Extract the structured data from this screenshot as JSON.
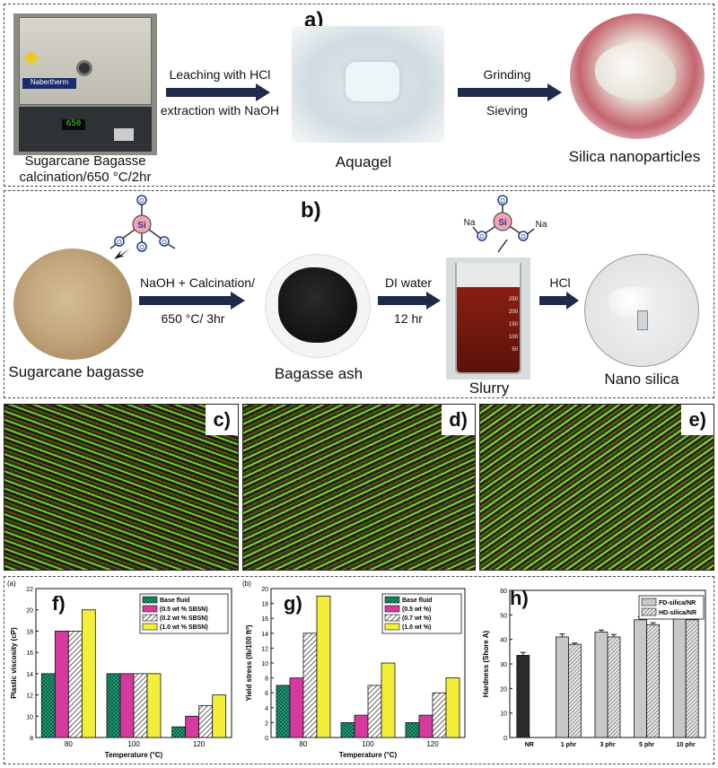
{
  "panel_a": {
    "label": "a)",
    "furnace_brand": "Nabertherm",
    "furnace_display": "650",
    "step1_line1": "Leaching with HCl",
    "step1_line2": "extraction with NaOH",
    "step2_line1": "Grinding",
    "step2_line2": "Sieving",
    "caption_start_line1": "Sugarcane Bagasse",
    "caption_start_line2": "calcination/650 °C/2hr",
    "caption_mid": "Aquagel",
    "caption_end": "Silica nanoparticles"
  },
  "panel_b": {
    "label": "b)",
    "step1_line1": "NaOH + Calcination/",
    "step1_line2": "650 °C/ 3hr",
    "step2_line1": "DI water",
    "step2_line2": "12 hr",
    "step3": "HCl",
    "caption_1": "Sugarcane bagasse",
    "caption_2": "Bagasse ash",
    "caption_3": "Slurry",
    "caption_4": "Nano silica",
    "si_label": "Si",
    "o_label": "O",
    "na_label": "Na",
    "beaker_marks": [
      "250",
      "200",
      "150",
      "100",
      "50"
    ]
  },
  "panel_cde": {
    "labels": [
      "c)",
      "d)",
      "e)"
    ]
  },
  "chart_f": {
    "label": "f)",
    "tag": "(a)",
    "chart_data": {
      "type": "bar",
      "categories": [
        "80",
        "100",
        "120"
      ],
      "series": [
        {
          "name": "Base fluid",
          "values": [
            14,
            14,
            9
          ]
        },
        {
          "name": "(0.5 wt % SBSN)",
          "values": [
            18,
            14,
            10
          ]
        },
        {
          "name": "(0.2 wt % SBSN)",
          "values": [
            18,
            14,
            11
          ]
        },
        {
          "name": "(1.0 wt % SBSN)",
          "values": [
            20,
            14,
            12
          ]
        }
      ],
      "xlabel": "Temperature (°C)",
      "ylabel": "Plastic viscosity (cP)",
      "ylim": [
        8,
        22
      ],
      "yticks": [
        "8",
        "10",
        "12",
        "14",
        "16",
        "18",
        "20",
        "22"
      ],
      "legend_position": "top-right"
    }
  },
  "chart_g": {
    "label": "g)",
    "tag": "(b)",
    "chart_data": {
      "type": "bar",
      "categories": [
        "80",
        "100",
        "120"
      ],
      "series": [
        {
          "name": "Base fluid",
          "values": [
            7,
            2,
            2
          ]
        },
        {
          "name": "(0.5 wt %)",
          "values": [
            8,
            3,
            3
          ]
        },
        {
          "name": "(0.7 wt %)",
          "values": [
            14,
            7,
            6
          ]
        },
        {
          "name": "(1.0 wt %)",
          "values": [
            19,
            10,
            8
          ]
        }
      ],
      "xlabel": "Temperature (°C)",
      "ylabel": "Yield stress (lb/100 ft²)",
      "ylim": [
        0,
        20
      ],
      "yticks": [
        "0",
        "2",
        "4",
        "6",
        "8",
        "10",
        "12",
        "14",
        "16",
        "18",
        "20"
      ],
      "legend_position": "top-right"
    }
  },
  "chart_h": {
    "label": "h)",
    "chart_data": {
      "type": "bar",
      "categories": [
        "NR",
        "1 phr",
        "3 phr",
        "5 phr",
        "10 phr"
      ],
      "series": [
        {
          "name": "FD-silica/NR",
          "values": [
            33.5,
            41,
            43,
            48,
            49.5
          ]
        },
        {
          "name": "HD-silica/NR",
          "values": [
            null,
            38,
            41,
            46,
            48
          ]
        }
      ],
      "errors": [
        [
          1.2,
          1.2,
          0.8,
          1.2,
          1.2
        ],
        [
          null,
          0.5,
          1.0,
          0.8,
          1.0
        ]
      ],
      "xlabel": "",
      "ylabel": "Hardness (Shore A)",
      "ylim": [
        0,
        60
      ],
      "yticks": [
        "0",
        "10",
        "20",
        "30",
        "40",
        "50",
        "60"
      ],
      "legend_position": "top-right"
    }
  },
  "colors": {
    "arrow": "#1f2a4d",
    "base_fluid": "#1f9e7a",
    "magenta": "#d63a9e",
    "yellow": "#f2ee3a",
    "nr_bar": "#2b2b2b",
    "fd_bar": "#c8c8c8",
    "si_atom": "#f4a3b6",
    "o_atom": "#ffffff",
    "slurry": "#8a1f12"
  }
}
